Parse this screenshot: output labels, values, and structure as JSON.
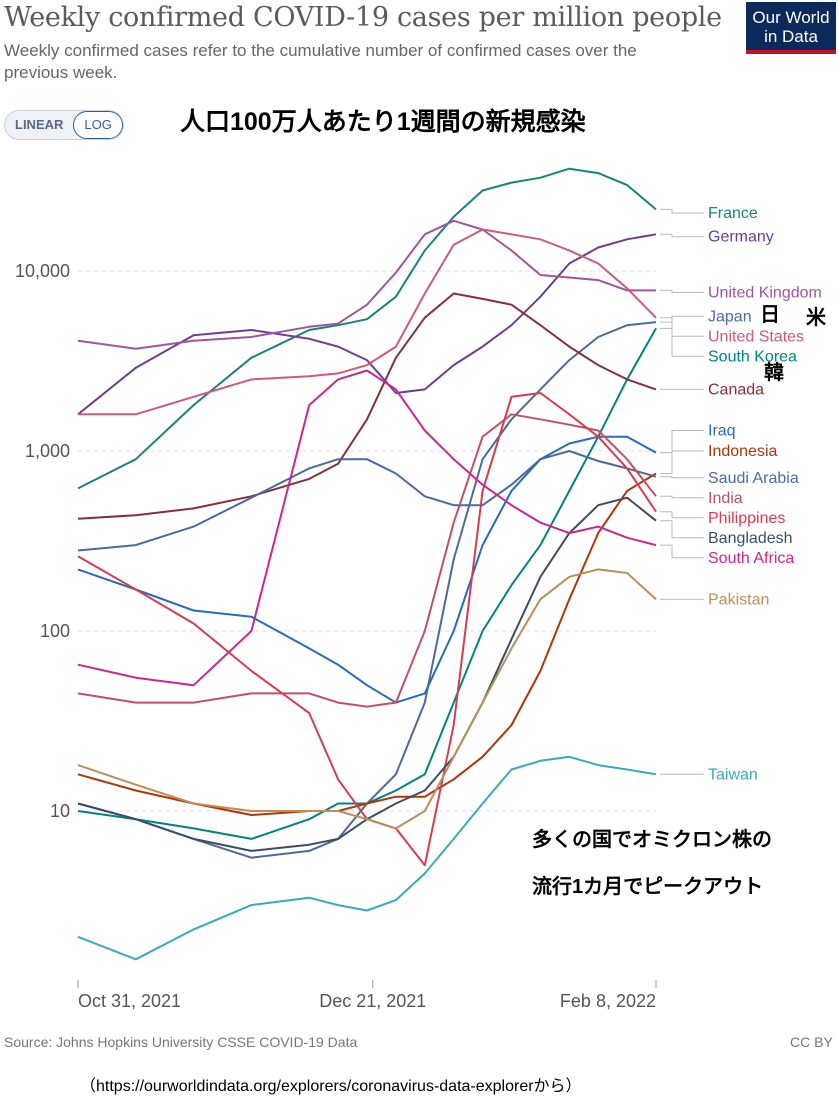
{
  "header": {
    "title": "Weekly confirmed COVID-19 cases per million people",
    "subtitle": "Weekly confirmed cases refer to the cumulative number of confirmed cases over the previous week.",
    "logo_line1": "Our World",
    "logo_line2": "in Data",
    "jp_title": "人口100万人あたり1週間の新規感染"
  },
  "scale_toggle": {
    "linear_label": "LINEAR",
    "log_label": "LOG",
    "selected": "LOG"
  },
  "annotations": {
    "jp_label": "日",
    "us_label": "米",
    "kr_label": "韓",
    "note_line1": "多くの国でオミクロン株の",
    "note_line2": "流行1カ月でピークアウト"
  },
  "footer": {
    "source": "Source: Johns Hopkins University CSSE COVID-19 Data",
    "license": "CC BY",
    "url_note": "（https://ourworldindata.org/explorers/coronavirus-data-explorerから）"
  },
  "chart_data": {
    "type": "line",
    "title": "Weekly confirmed COVID-19 cases per million people",
    "y_scale": "log",
    "ylim": [
      1.3,
      40000
    ],
    "y_ticks": [
      {
        "value": 10,
        "label": "10"
      },
      {
        "value": 100,
        "label": "100"
      },
      {
        "value": 1000,
        "label": "1,000"
      },
      {
        "value": 10000,
        "label": "10,000"
      }
    ],
    "x_ticks": [
      {
        "value": 0,
        "label": "Oct 31, 2021"
      },
      {
        "value": 51,
        "label": "Dec 21, 2021"
      },
      {
        "value": 100,
        "label": "Feb 8, 2022"
      }
    ],
    "grid": "horizontal-dashed",
    "x": [
      0,
      10,
      20,
      30,
      40,
      45,
      50,
      55,
      60,
      65,
      70,
      75,
      80,
      85,
      90,
      95,
      100
    ],
    "series": [
      {
        "name": "France",
        "color": "#18847a",
        "label_value": 21000,
        "values": [
          620,
          900,
          1800,
          3300,
          4700,
          5000,
          5400,
          7200,
          13000,
          20000,
          28000,
          31000,
          33000,
          37000,
          35000,
          30000,
          22000
        ]
      },
      {
        "name": "Germany",
        "color": "#6d3e91",
        "label_value": 15500,
        "values": [
          1600,
          2900,
          4400,
          4700,
          4200,
          3800,
          3200,
          2100,
          2200,
          3000,
          3800,
          5000,
          7200,
          11000,
          13500,
          15000,
          16000
        ]
      },
      {
        "name": "United Kingdom",
        "color": "#a2559c",
        "label_value": 7600,
        "values": [
          4100,
          3700,
          4100,
          4300,
          4900,
          5100,
          6500,
          9800,
          16000,
          19000,
          17000,
          13000,
          9500,
          9200,
          8900,
          7800,
          7800
        ]
      },
      {
        "name": "Japan",
        "color": "#4c6a9c",
        "label_value": 5600,
        "values": [
          11,
          9,
          7,
          5.5,
          6,
          7,
          11,
          16,
          40,
          250,
          900,
          1500,
          2200,
          3200,
          4300,
          5000,
          5200
        ]
      },
      {
        "name": "United States",
        "color": "#ce5a76",
        "label_value": 5100,
        "values": [
          1600,
          1600,
          2000,
          2500,
          2600,
          2700,
          3000,
          3800,
          7500,
          14000,
          17000,
          16000,
          15000,
          13000,
          11000,
          8000,
          5500
        ]
      },
      {
        "name": "South Korea",
        "color": "#00847e",
        "label_value": 3600,
        "values": [
          10,
          9,
          8,
          7,
          9,
          11,
          11,
          13,
          16,
          40,
          100,
          180,
          300,
          600,
          1200,
          2500,
          4800
        ]
      },
      {
        "name": "Canada",
        "color": "#883039",
        "label_value": 2200,
        "values": [
          420,
          440,
          480,
          560,
          700,
          850,
          1500,
          3300,
          5500,
          7500,
          7000,
          6500,
          5000,
          3800,
          3000,
          2500,
          2200
        ]
      },
      {
        "name": "Iraq",
        "color": "#286bbb",
        "label_value": 1300,
        "values": [
          220,
          170,
          130,
          120,
          80,
          65,
          50,
          40,
          45,
          100,
          300,
          600,
          900,
          1100,
          1200,
          1200,
          980
        ]
      },
      {
        "name": "Indonesia",
        "color": "#b13507",
        "label_value": 1000,
        "values": [
          16,
          13,
          11,
          9.5,
          10,
          10,
          11,
          12,
          12,
          15,
          20,
          30,
          60,
          150,
          350,
          600,
          750
        ]
      },
      {
        "name": "Saudi Arabia",
        "color": "#4c6a9c",
        "label_value": 710,
        "values": [
          280,
          300,
          380,
          550,
          800,
          900,
          900,
          750,
          560,
          500,
          500,
          650,
          900,
          1000,
          880,
          800,
          720
        ]
      },
      {
        "name": "India",
        "color": "#c15065",
        "label_value": 570,
        "values": [
          45,
          40,
          40,
          45,
          45,
          40,
          38,
          40,
          100,
          400,
          1200,
          1600,
          1500,
          1400,
          1300,
          900,
          560
        ]
      },
      {
        "name": "Philippines",
        "color": "#d73c50",
        "label_value": 460,
        "values": [
          260,
          170,
          110,
          60,
          35,
          15,
          9,
          8,
          5,
          30,
          600,
          2000,
          2100,
          1600,
          1200,
          800,
          460
        ]
      },
      {
        "name": "Bangladesh",
        "color": "#3c4e66",
        "label_value": 420,
        "values": [
          11,
          9,
          7,
          6,
          6.5,
          7,
          9,
          11,
          13,
          20,
          40,
          90,
          200,
          350,
          500,
          550,
          410
        ]
      },
      {
        "name": "South Africa",
        "color": "#c92692",
        "label_value": 300,
        "values": [
          65,
          55,
          50,
          100,
          1800,
          2500,
          2800,
          2200,
          1300,
          900,
          650,
          500,
          400,
          350,
          380,
          330,
          300
        ]
      },
      {
        "name": "Pakistan",
        "color": "#bc8e5a",
        "label_value": 150,
        "values": [
          18,
          14,
          11,
          10,
          10,
          10,
          9,
          8,
          10,
          20,
          40,
          80,
          150,
          200,
          220,
          210,
          150
        ]
      },
      {
        "name": "Taiwan",
        "color": "#38aaba",
        "label_value": 16,
        "values": [
          2,
          1.5,
          2.2,
          3,
          3.3,
          3,
          2.8,
          3.2,
          4.5,
          7,
          11,
          17,
          19,
          20,
          18,
          17,
          16
        ]
      }
    ]
  }
}
